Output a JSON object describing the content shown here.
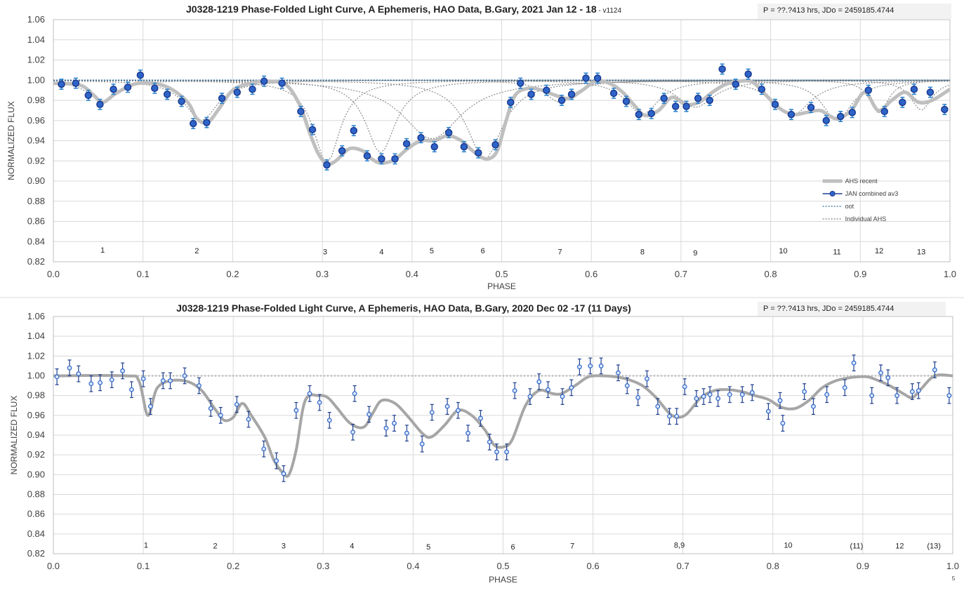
{
  "chart_data": [
    {
      "type": "scatter",
      "title": "J0328-1219 Phase-Folded Light Curve, A Ephemeris, HAO Data, B.Gary, 2021 Jan 12 - 18",
      "title_suffix": "- v1124",
      "info": "P = ??.?413 hrs, JDo = 2459185.4744",
      "xlabel": "PHASE",
      "ylabel": "NORMALIZED FLUX",
      "xlim": [
        0,
        1
      ],
      "ylim": [
        0.82,
        1.06
      ],
      "x_ticks": [
        "0.0",
        "0.1",
        "0.2",
        "0.3",
        "0.4",
        "0.5",
        "0.6",
        "0.7",
        "0.8",
        "0.9",
        "1.0"
      ],
      "y_ticks": [
        "0.82",
        "0.84",
        "0.86",
        "0.88",
        "0.90",
        "0.92",
        "0.94",
        "0.96",
        "0.98",
        "1.00",
        "1.02",
        "1.04",
        "1.06"
      ],
      "grid": true,
      "legend": {
        "position": "lower-right",
        "entries": [
          {
            "label": "AHS recent",
            "style": "thick-gray",
            "color": "#bfbfbf"
          },
          {
            "label": "JAN combined av3",
            "style": "blue-marker-line",
            "color": "#1f3f99"
          },
          {
            "label": "oot",
            "style": "dotted",
            "color": "#2e6fa0"
          },
          {
            "label": "Individual AHS",
            "style": "dotted",
            "color": "#7f7f7f"
          }
        ]
      },
      "annotations": [
        {
          "text": "1",
          "x": 0.055,
          "y": 0.832
        },
        {
          "text": "2",
          "x": 0.16,
          "y": 0.831
        },
        {
          "text": "3",
          "x": 0.303,
          "y": 0.83
        },
        {
          "text": "4",
          "x": 0.366,
          "y": 0.83
        },
        {
          "text": "5",
          "x": 0.422,
          "y": 0.831
        },
        {
          "text": "6",
          "x": 0.479,
          "y": 0.831
        },
        {
          "text": "7",
          "x": 0.565,
          "y": 0.83
        },
        {
          "text": "8",
          "x": 0.657,
          "y": 0.83
        },
        {
          "text": "9",
          "x": 0.716,
          "y": 0.829
        },
        {
          "text": "10",
          "x": 0.814,
          "y": 0.831
        },
        {
          "text": "11",
          "x": 0.874,
          "y": 0.83
        },
        {
          "text": "12",
          "x": 0.921,
          "y": 0.831
        },
        {
          "text": "13",
          "x": 0.968,
          "y": 0.83
        }
      ],
      "series": [
        {
          "name": "JAN combined av3",
          "x": [
            0.009,
            0.025,
            0.039,
            0.052,
            0.067,
            0.083,
            0.097,
            0.113,
            0.127,
            0.143,
            0.156,
            0.171,
            0.188,
            0.205,
            0.222,
            0.235,
            0.255,
            0.276,
            0.289,
            0.305,
            0.322,
            0.335,
            0.35,
            0.366,
            0.381,
            0.394,
            0.41,
            0.425,
            0.441,
            0.458,
            0.474,
            0.493,
            0.51,
            0.521,
            0.533,
            0.55,
            0.567,
            0.578,
            0.594,
            0.607,
            0.625,
            0.639,
            0.653,
            0.667,
            0.681,
            0.694,
            0.706,
            0.719,
            0.732,
            0.746,
            0.761,
            0.775,
            0.79,
            0.805,
            0.823,
            0.845,
            0.862,
            0.878,
            0.891,
            0.909,
            0.927,
            0.947,
            0.96,
            0.978,
            0.994
          ],
          "y": [
            0.996,
            0.997,
            0.985,
            0.976,
            0.991,
            0.993,
            1.005,
            0.992,
            0.986,
            0.979,
            0.957,
            0.958,
            0.982,
            0.988,
            0.991,
            0.999,
            0.997,
            0.969,
            0.951,
            0.916,
            0.93,
            0.95,
            0.925,
            0.922,
            0.922,
            0.937,
            0.943,
            0.934,
            0.948,
            0.934,
            0.928,
            0.936,
            0.978,
            0.997,
            0.986,
            0.99,
            0.98,
            0.986,
            1.002,
            1.002,
            0.987,
            0.979,
            0.966,
            0.967,
            0.982,
            0.974,
            0.974,
            0.982,
            0.98,
            1.011,
            0.996,
            1.006,
            0.991,
            0.976,
            0.966,
            0.973,
            0.96,
            0.964,
            0.968,
            0.99,
            0.969,
            0.978,
            0.991,
            0.988,
            0.971
          ],
          "err": 0.005
        },
        {
          "name": "AHS recent",
          "x": [
            0.0,
            0.03,
            0.045,
            0.055,
            0.07,
            0.09,
            0.11,
            0.13,
            0.15,
            0.16,
            0.172,
            0.185,
            0.2,
            0.22,
            0.24,
            0.26,
            0.275,
            0.285,
            0.295,
            0.305,
            0.315,
            0.33,
            0.345,
            0.355,
            0.365,
            0.38,
            0.395,
            0.41,
            0.425,
            0.44,
            0.455,
            0.465,
            0.475,
            0.485,
            0.495,
            0.505,
            0.515,
            0.53,
            0.545,
            0.56,
            0.575,
            0.59,
            0.605,
            0.62,
            0.635,
            0.648,
            0.66,
            0.675,
            0.69,
            0.705,
            0.72,
            0.735,
            0.75,
            0.765,
            0.78,
            0.795,
            0.81,
            0.825,
            0.84,
            0.855,
            0.865,
            0.875,
            0.89,
            0.905,
            0.92,
            0.935,
            0.95,
            0.965,
            0.98,
            1.0
          ],
          "y": [
            0.997,
            0.995,
            0.985,
            0.978,
            0.987,
            0.996,
            0.997,
            0.992,
            0.978,
            0.962,
            0.958,
            0.972,
            0.99,
            0.997,
            0.999,
            0.995,
            0.975,
            0.95,
            0.928,
            0.917,
            0.92,
            0.932,
            0.93,
            0.922,
            0.918,
            0.921,
            0.932,
            0.94,
            0.94,
            0.945,
            0.94,
            0.932,
            0.925,
            0.922,
            0.93,
            0.96,
            0.985,
            0.992,
            0.99,
            0.985,
            0.982,
            0.99,
            0.999,
            0.997,
            0.988,
            0.975,
            0.965,
            0.97,
            0.983,
            0.976,
            0.978,
            0.988,
            0.996,
            0.999,
            0.998,
            0.985,
            0.972,
            0.966,
            0.968,
            0.97,
            0.965,
            0.962,
            0.97,
            0.988,
            0.97,
            0.98,
            0.988,
            0.978,
            0.98,
            0.991
          ]
        },
        {
          "name": "oot",
          "x": [
            0,
            1
          ],
          "y": [
            1.0,
            1.0
          ]
        }
      ],
      "individual_ahs_dips": [
        {
          "center": 0.055,
          "depth": 0.021,
          "width": 0.02
        },
        {
          "center": 0.165,
          "depth": 0.04,
          "width": 0.022
        },
        {
          "center": 0.305,
          "depth": 0.082,
          "width": 0.018
        },
        {
          "center": 0.365,
          "depth": 0.072,
          "width": 0.02
        },
        {
          "center": 0.422,
          "depth": 0.058,
          "width": 0.04
        },
        {
          "center": 0.481,
          "depth": 0.078,
          "width": 0.024
        },
        {
          "center": 0.565,
          "depth": 0.022,
          "width": 0.02
        },
        {
          "center": 0.657,
          "depth": 0.034,
          "width": 0.022
        },
        {
          "center": 0.716,
          "depth": 0.027,
          "width": 0.025
        },
        {
          "center": 0.824,
          "depth": 0.035,
          "width": 0.025
        },
        {
          "center": 0.874,
          "depth": 0.04,
          "width": 0.02
        },
        {
          "center": 0.921,
          "depth": 0.033,
          "width": 0.012
        },
        {
          "center": 0.968,
          "depth": 0.03,
          "width": 0.014
        }
      ]
    },
    {
      "type": "scatter",
      "title": "J0328-1219 Phase-Folded Light Curve, A Ephemeris, HAO Data, B.Gary, 2020 Dec 02 -17 (11 Days)",
      "info": "P = ??.?413 hrs, JDo = 2459185.4744",
      "xlabel": "PHASE",
      "ylabel": "NORMALIZED FLUX",
      "corner_mark": "5",
      "xlim": [
        0,
        1
      ],
      "ylim": [
        0.82,
        1.06
      ],
      "x_ticks": [
        "0.0",
        "0.1",
        "0.2",
        "0.3",
        "0.4",
        "0.5",
        "0.6",
        "0.7",
        "0.8",
        "0.9",
        "1.0"
      ],
      "y_ticks": [
        "0.82",
        "0.84",
        "0.86",
        "0.88",
        "0.90",
        "0.92",
        "0.94",
        "0.96",
        "0.98",
        "1.00",
        "1.02",
        "1.04",
        "1.06"
      ],
      "grid": true,
      "annotations": [
        {
          "text": "1",
          "x": 0.103,
          "y": 0.829
        },
        {
          "text": "2",
          "x": 0.18,
          "y": 0.828
        },
        {
          "text": "3",
          "x": 0.256,
          "y": 0.828
        },
        {
          "text": "4",
          "x": 0.332,
          "y": 0.828
        },
        {
          "text": "5",
          "x": 0.417,
          "y": 0.827
        },
        {
          "text": "6",
          "x": 0.511,
          "y": 0.827
        },
        {
          "text": "7",
          "x": 0.577,
          "y": 0.828
        },
        {
          "text": "8,9",
          "x": 0.696,
          "y": 0.829
        },
        {
          "text": "10",
          "x": 0.817,
          "y": 0.829
        },
        {
          "text": "(11)",
          "x": 0.893,
          "y": 0.828
        },
        {
          "text": "12",
          "x": 0.941,
          "y": 0.828
        },
        {
          "text": "(13)",
          "x": 0.979,
          "y": 0.828
        }
      ],
      "series": [
        {
          "name": "",
          "x": [
            0.004,
            0.018,
            0.028,
            0.042,
            0.052,
            0.065,
            0.077,
            0.087,
            0.1,
            0.108,
            0.122,
            0.13,
            0.146,
            0.162,
            0.175,
            0.186,
            0.204,
            0.217,
            0.234,
            0.248,
            0.256,
            0.27,
            0.285,
            0.296,
            0.307,
            0.333,
            0.335,
            0.351,
            0.37,
            0.379,
            0.393,
            0.41,
            0.421,
            0.438,
            0.45,
            0.461,
            0.475,
            0.485,
            0.493,
            0.504,
            0.513,
            0.53,
            0.54,
            0.55,
            0.566,
            0.576,
            0.585,
            0.597,
            0.609,
            0.628,
            0.638,
            0.65,
            0.66,
            0.672,
            0.685,
            0.693,
            0.702,
            0.715,
            0.723,
            0.73,
            0.739,
            0.752,
            0.766,
            0.777,
            0.795,
            0.808,
            0.811,
            0.835,
            0.845,
            0.86,
            0.88,
            0.89,
            0.91,
            0.92,
            0.928,
            0.938,
            0.955,
            0.962,
            0.98,
            0.996
          ],
          "y": [
            0.999,
            1.008,
            1.002,
            0.992,
            0.993,
            0.996,
            1.005,
            0.986,
            0.997,
            0.969,
            0.995,
            0.995,
            1.0,
            0.99,
            0.967,
            0.96,
            0.971,
            0.956,
            0.926,
            0.914,
            0.901,
            0.965,
            0.982,
            0.973,
            0.955,
            0.943,
            0.982,
            0.961,
            0.947,
            0.952,
            0.942,
            0.931,
            0.963,
            0.969,
            0.965,
            0.942,
            0.957,
            0.933,
            0.923,
            0.923,
            0.985,
            0.979,
            0.994,
            0.986,
            0.979,
            0.988,
            1.009,
            1.01,
            1.01,
            1.003,
            0.99,
            0.978,
            0.997,
            0.969,
            0.959,
            0.959,
            0.989,
            0.977,
            0.979,
            0.981,
            0.977,
            0.981,
            0.981,
            0.983,
            0.964,
            0.975,
            0.952,
            0.984,
            0.969,
            0.981,
            0.988,
            1.013,
            0.98,
            1.003,
            0.998,
            0.98,
            0.984,
            0.985,
            1.006,
            0.98
          ],
          "err": 0.008
        },
        {
          "name": "",
          "x": [
            0.0,
            0.08,
            0.095,
            0.105,
            0.115,
            0.13,
            0.15,
            0.165,
            0.18,
            0.19,
            0.2,
            0.21,
            0.22,
            0.235,
            0.245,
            0.255,
            0.262,
            0.27,
            0.28,
            0.295,
            0.305,
            0.315,
            0.33,
            0.345,
            0.355,
            0.365,
            0.38,
            0.395,
            0.41,
            0.42,
            0.435,
            0.45,
            0.465,
            0.48,
            0.49,
            0.5,
            0.51,
            0.525,
            0.54,
            0.555,
            0.565,
            0.58,
            0.595,
            0.61,
            0.625,
            0.64,
            0.655,
            0.67,
            0.685,
            0.695,
            0.705,
            0.72,
            0.735,
            0.75,
            0.765,
            0.78,
            0.795,
            0.81,
            0.825,
            0.84,
            0.855,
            0.87,
            0.885,
            0.895,
            0.905,
            0.915,
            0.93,
            0.945,
            0.955,
            0.965,
            0.98,
            1.0
          ],
          "y": [
            1.0,
            1.0,
            0.995,
            0.96,
            0.987,
            0.995,
            0.994,
            0.985,
            0.966,
            0.955,
            0.958,
            0.972,
            0.96,
            0.938,
            0.915,
            0.902,
            0.9,
            0.925,
            0.975,
            0.98,
            0.978,
            0.968,
            0.952,
            0.948,
            0.962,
            0.975,
            0.972,
            0.958,
            0.942,
            0.938,
            0.95,
            0.965,
            0.96,
            0.945,
            0.93,
            0.928,
            0.935,
            0.97,
            0.985,
            0.982,
            0.982,
            0.99,
            0.999,
            1.0,
            0.999,
            0.996,
            0.99,
            0.978,
            0.962,
            0.958,
            0.962,
            0.978,
            0.985,
            0.986,
            0.984,
            0.98,
            0.976,
            0.968,
            0.967,
            0.975,
            0.988,
            0.995,
            0.998,
            0.999,
            0.999,
            0.996,
            0.99,
            0.982,
            0.978,
            0.987,
            1.0,
            1.0
          ]
        },
        {
          "name": "",
          "x": [
            0,
            1
          ],
          "y": [
            1.0,
            1.0
          ]
        }
      ]
    }
  ]
}
